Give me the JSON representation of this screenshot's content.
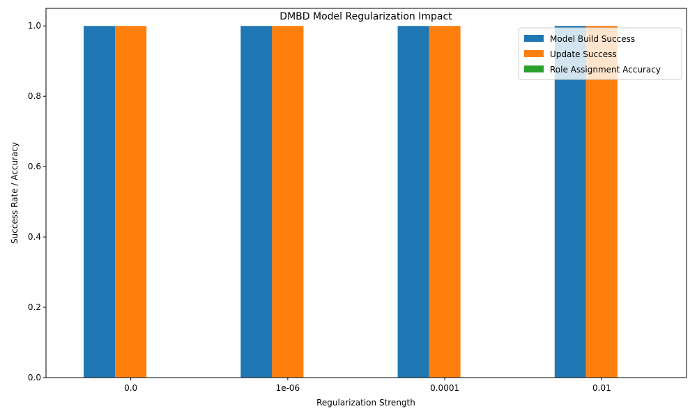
{
  "chart_data": {
    "type": "bar",
    "title": "DMBD Model Regularization Impact",
    "xlabel": "Regularization Strength",
    "ylabel": "Success Rate / Accuracy",
    "categories": [
      "0.0",
      "1e-06",
      "0.0001",
      "0.01"
    ],
    "ylim": [
      0,
      1.05
    ],
    "yticks": [
      "0.0",
      "0.2",
      "0.4",
      "0.6",
      "0.8",
      "1.0"
    ],
    "grid": false,
    "legend_position": "top-right",
    "series": [
      {
        "name": "Model Build Success",
        "color": "#1f77b4",
        "values": [
          1.0,
          1.0,
          1.0,
          1.0
        ]
      },
      {
        "name": "Update Success",
        "color": "#ff7f0e",
        "values": [
          1.0,
          1.0,
          1.0,
          1.0
        ]
      },
      {
        "name": "Role Assignment Accuracy",
        "color": "#2ca02c",
        "values": [
          0.0,
          0.0,
          0.0,
          0.0
        ]
      }
    ]
  }
}
